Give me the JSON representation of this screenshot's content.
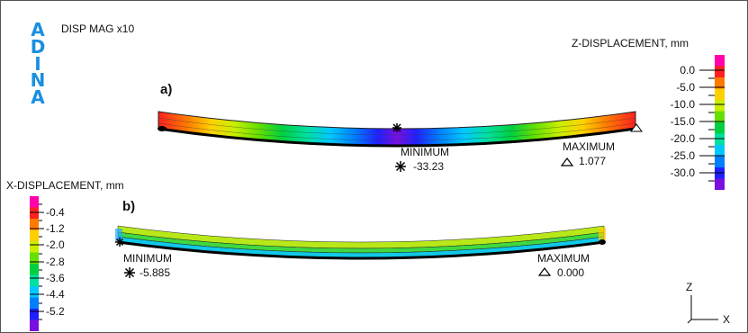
{
  "logo": {
    "letters": [
      "A",
      "D",
      "I",
      "N",
      "A"
    ]
  },
  "header": {
    "mag_label": "DISP MAG x10"
  },
  "panel_a": {
    "label": "a)",
    "legend": {
      "title": "Z-DISPLACEMENT, mm",
      "ticks": [
        "0.0",
        "-5.0",
        "-10.0",
        "-15.0",
        "-20.0",
        "-25.0",
        "-30.0"
      ]
    },
    "minimum": {
      "label": "MINIMUM",
      "value": "-33.23"
    },
    "maximum": {
      "label": "MAXIMUM",
      "value": "1.077"
    }
  },
  "panel_b": {
    "label": "b)",
    "legend": {
      "title": "X-DISPLACEMENT, mm",
      "ticks": [
        "-0.4",
        "-1.2",
        "-2.0",
        "-2.8",
        "-3.6",
        "-4.4",
        "-5.2"
      ]
    },
    "minimum": {
      "label": "MINIMUM",
      "value": "-5.885"
    },
    "maximum": {
      "label": "MAXIMUM",
      "value": "0.000"
    }
  },
  "axes": {
    "z": "Z",
    "x": "X"
  },
  "colors": {
    "scale": [
      "#ff00aa",
      "#ff2020",
      "#ff7a00",
      "#ffd000",
      "#c8ee00",
      "#66e000",
      "#00d040",
      "#00e0a0",
      "#00c8ff",
      "#0080ff",
      "#2020ff",
      "#7a10e0"
    ],
    "logo": "#1a8fe0"
  }
}
